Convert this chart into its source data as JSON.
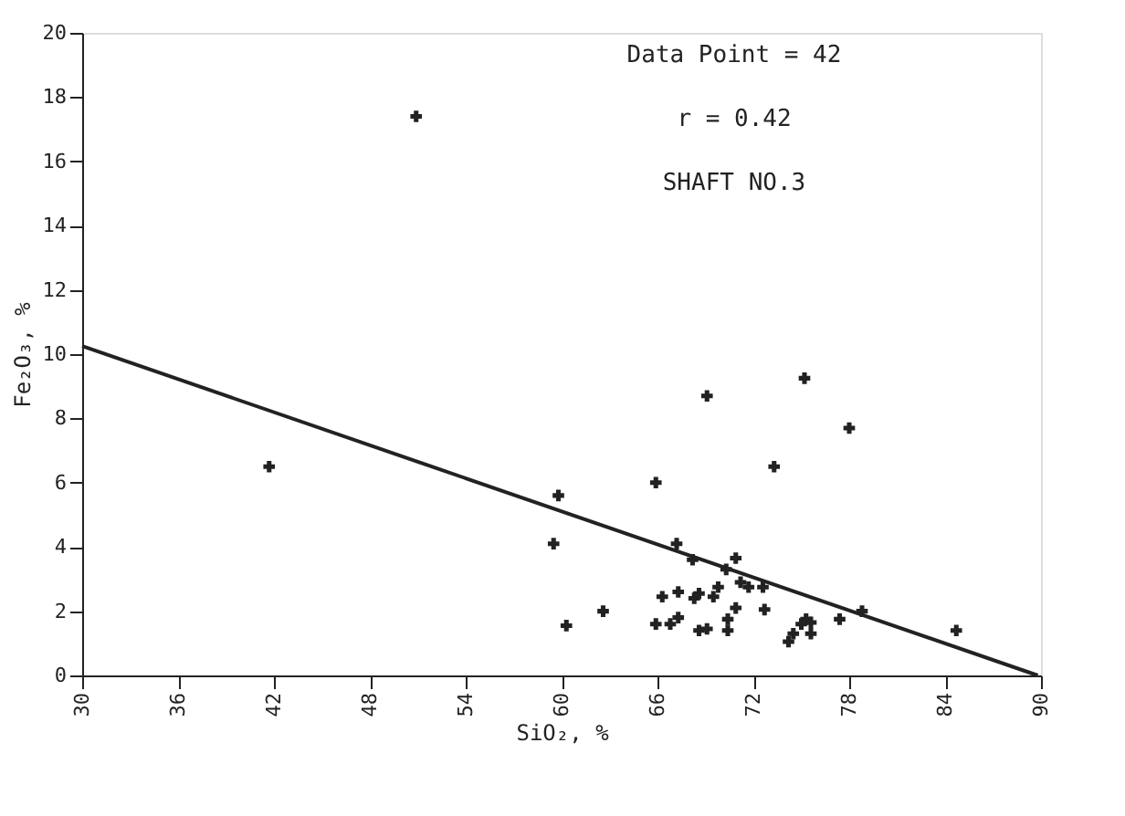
{
  "chart_data": {
    "type": "scatter",
    "xlabel": "SiO₂, %",
    "ylabel": "Fe₂O₃, %",
    "annotations": [
      "Data Point = 42",
      "r = 0.42",
      "SHAFT NO.3"
    ],
    "xlim": [
      30,
      90
    ],
    "ylim": [
      0,
      20
    ],
    "xticks": [
      30,
      36,
      42,
      48,
      54,
      60,
      66,
      72,
      78,
      84,
      90
    ],
    "yticks": [
      0,
      2,
      4,
      6,
      8,
      10,
      12,
      14,
      16,
      18,
      20
    ],
    "grid": false,
    "marker": "cross",
    "series": [
      {
        "color": "#222222",
        "x": [
          50.9,
          41.7,
          59.8,
          59.5,
          60.3,
          62.6,
          65.9,
          65.9,
          66.3,
          67.2,
          66.8,
          67.3,
          67.3,
          68.2,
          68.3,
          68.6,
          68.6,
          69.1,
          69.1,
          69.5,
          69.8,
          70.3,
          70.4,
          70.4,
          70.9,
          70.9,
          71.2,
          71.7,
          72.6,
          72.7,
          73.3,
          74.2,
          74.5,
          75.0,
          75.3,
          75.6,
          75.6,
          75.2,
          77.4,
          78.0,
          78.8,
          84.7
        ],
        "values": [
          17.4,
          6.5,
          5.6,
          4.1,
          1.55,
          2.0,
          6.0,
          1.6,
          2.45,
          4.1,
          1.6,
          1.8,
          2.6,
          3.6,
          2.4,
          2.55,
          1.4,
          1.45,
          8.7,
          2.45,
          2.75,
          3.3,
          1.75,
          1.4,
          3.65,
          2.1,
          2.9,
          2.75,
          2.75,
          2.05,
          6.5,
          1.05,
          1.3,
          1.6,
          1.75,
          1.3,
          1.65,
          9.25,
          1.75,
          7.7,
          2.0,
          1.4
        ]
      },
      {
        "type": "line",
        "color": "#222222",
        "line_style": "solid",
        "marker": "none",
        "x": [
          30,
          89.8
        ],
        "values": [
          10.25,
          0
        ]
      }
    ]
  }
}
